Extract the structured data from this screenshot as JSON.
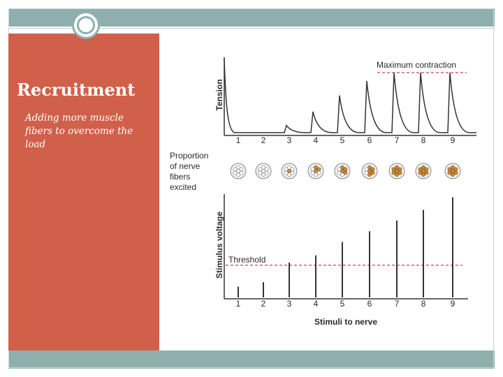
{
  "slide": {
    "title": "Recruitment",
    "subtitle": "Adding more muscle fibers to overcome the load"
  },
  "figure": {
    "max_contraction_label": "Maximum contraction",
    "tension_label": "Tension",
    "proportion_label": [
      "Proportion",
      "of nerve",
      "fibers",
      "excited"
    ],
    "stimulus_voltage_label": "Stimulus voltage",
    "threshold_label": "Threshold",
    "x_label": "Stimuli to nerve",
    "stimuli": [
      "1",
      "2",
      "3",
      "4",
      "5",
      "6",
      "7",
      "8",
      "9"
    ],
    "tension_levels": [
      0,
      0,
      0.12,
      0.35,
      0.62,
      0.86,
      1.0,
      1.0,
      1.0
    ],
    "voltage_levels": [
      0.12,
      0.17,
      0.39,
      0.47,
      0.62,
      0.74,
      0.86,
      0.98,
      1.12
    ],
    "threshold_level": 0.36,
    "fibers_excited_of_7": [
      0,
      0,
      1,
      3,
      4,
      5,
      7,
      7,
      7
    ],
    "colors": {
      "panel": "#d0604a",
      "bars": "#8fafaf",
      "dashed": "#d0404a",
      "fiber_excited": "#c98a3a",
      "fiber_idle": "#ffffff"
    }
  }
}
